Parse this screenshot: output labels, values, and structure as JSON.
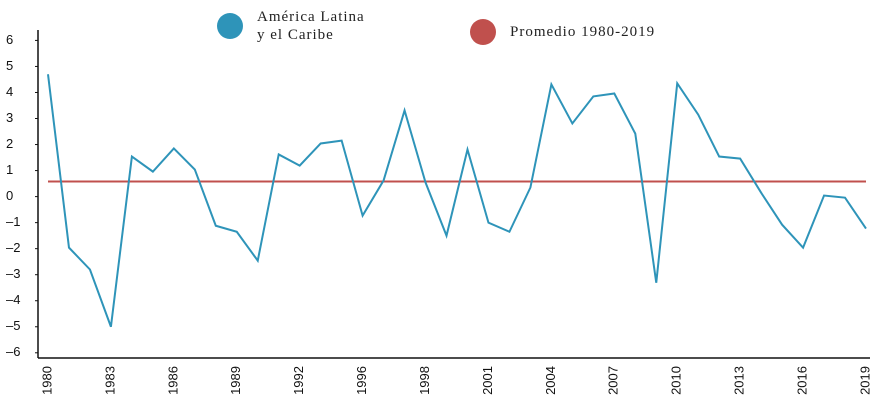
{
  "chart_data": {
    "type": "line",
    "categories": [
      "1980",
      null,
      null,
      "1983",
      null,
      null,
      "1986",
      null,
      null,
      "1989",
      null,
      null,
      "1992",
      null,
      null,
      "1996",
      null,
      null,
      "1998",
      null,
      null,
      "2001",
      null,
      null,
      "2004",
      null,
      null,
      "2007",
      null,
      null,
      "2010",
      null,
      null,
      "2013",
      null,
      null,
      "2016",
      null,
      null,
      "2019"
    ],
    "series": [
      {
        "name": "América Latina y el Caribe",
        "color": "#2e94b9",
        "values": [
          4.7,
          -1.96,
          -2.8,
          -5.0,
          1.54,
          0.96,
          1.85,
          1.04,
          -1.12,
          -1.35,
          -2.46,
          1.62,
          1.19,
          2.04,
          2.15,
          -0.73,
          0.62,
          3.31,
          0.54,
          -1.5,
          1.81,
          -1.0,
          -1.35,
          0.35,
          4.31,
          2.81,
          3.85,
          3.96,
          2.42,
          -3.31,
          4.35,
          3.15,
          1.54,
          1.46,
          0.15,
          -1.08,
          -1.96,
          0.04,
          -0.04,
          -1.23
        ]
      },
      {
        "name": "Promedio 1980-2019",
        "color": "#c0504d",
        "values": [
          0.58,
          0.58,
          0.58,
          0.58,
          0.58,
          0.58,
          0.58,
          0.58,
          0.58,
          0.58,
          0.58,
          0.58,
          0.58,
          0.58,
          0.58,
          0.58,
          0.58,
          0.58,
          0.58,
          0.58,
          0.58,
          0.58,
          0.58,
          0.58,
          0.58,
          0.58,
          0.58,
          0.58,
          0.58,
          0.58,
          0.58,
          0.58,
          0.58,
          0.58,
          0.58,
          0.58,
          0.58,
          0.58,
          0.58,
          0.58
        ]
      }
    ],
    "ylim": [
      -6.2,
      6.4
    ],
    "yticks": [
      {
        "value": -6,
        "label": "–6"
      },
      {
        "value": -5,
        "label": "–5"
      },
      {
        "value": -4,
        "label": "–4"
      },
      {
        "value": -3,
        "label": "–3"
      },
      {
        "value": -2,
        "label": "–2"
      },
      {
        "value": -1,
        "label": "–1"
      },
      0,
      1,
      2,
      3,
      4,
      5,
      6
    ],
    "grid": false
  }
}
